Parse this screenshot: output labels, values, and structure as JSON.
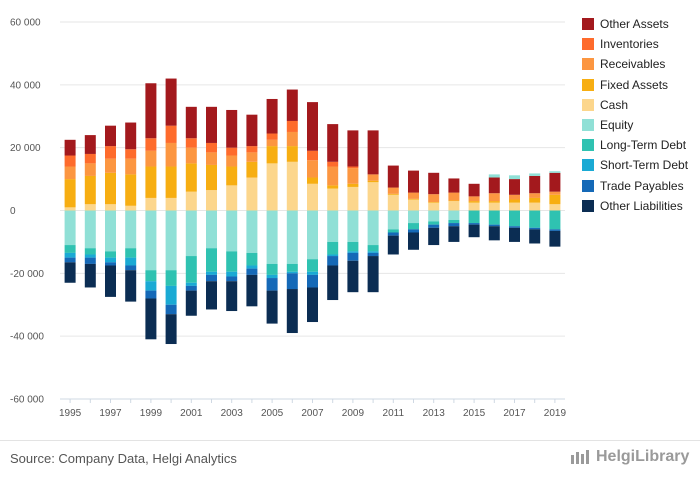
{
  "chart_data": {
    "type": "bar",
    "stacked": true,
    "categories": [
      "1995",
      "1996",
      "1997",
      "1998",
      "1999",
      "2000",
      "2001",
      "2002",
      "2003",
      "2004",
      "2005",
      "2006",
      "2007",
      "2008",
      "2009",
      "2010",
      "2011",
      "2012",
      "2013",
      "2014",
      "2015",
      "2016",
      "2017",
      "2018",
      "2019"
    ],
    "x_tick_labels": [
      "1995",
      "1997",
      "1999",
      "2001",
      "2003",
      "2005",
      "2007",
      "2009",
      "2011",
      "2013",
      "2015",
      "2017",
      "2019"
    ],
    "y_ticks": [
      60000,
      40000,
      20000,
      0,
      -20000,
      -40000,
      -60000
    ],
    "y_tick_labels": [
      "60 000",
      "40 000",
      "20 000",
      "0",
      "-20 000",
      "-40 000",
      "-60 000"
    ],
    "ylim": [
      -60000,
      60000
    ],
    "positive_series": [
      {
        "name": "Cash",
        "color": "#fcd68c",
        "values": [
          1000,
          2000,
          2000,
          1500,
          4000,
          4000,
          6000,
          6500,
          8000,
          10500,
          15000,
          15500,
          8500,
          7000,
          7500,
          9000,
          5000,
          3500,
          2500,
          3000,
          2500,
          2500,
          2500,
          2500,
          2000
        ]
      },
      {
        "name": "Fixed Assets",
        "color": "#f7ae12",
        "values": [
          9000,
          9000,
          10000,
          10000,
          10000,
          10000,
          9000,
          8000,
          6000,
          5000,
          5500,
          5000,
          2000,
          1000,
          1000,
          500,
          300,
          200,
          200,
          200,
          500,
          500,
          1000,
          1500,
          3000
        ]
      },
      {
        "name": "Receivables",
        "color": "#fc9641",
        "values": [
          4000,
          4000,
          4500,
          5000,
          5000,
          7500,
          5000,
          4000,
          3500,
          3000,
          2000,
          4500,
          5500,
          6000,
          5000,
          2000,
          2000,
          2000,
          2500,
          2500,
          1500,
          2500,
          1500,
          1500,
          1000
        ]
      },
      {
        "name": "Inventories",
        "color": "#fe6b2c",
        "values": [
          3500,
          3000,
          4000,
          3000,
          4000,
          5500,
          3000,
          3000,
          2500,
          2000,
          2000,
          3500,
          3000,
          1500,
          500,
          0,
          0,
          0,
          0,
          0,
          0,
          0,
          0,
          0,
          0
        ]
      },
      {
        "name": "Other Assets",
        "color": "#a3191d",
        "values": [
          5000,
          6000,
          6500,
          8500,
          17500,
          15000,
          10000,
          11500,
          12000,
          10000,
          11000,
          10000,
          15500,
          12000,
          11500,
          14000,
          7000,
          7000,
          6800,
          4500,
          4000,
          5000,
          5000,
          5500,
          6000
        ]
      },
      {
        "name": "Equity",
        "color": "#90e0d6",
        "values": [
          0,
          0,
          0,
          0,
          0,
          0,
          0,
          0,
          0,
          0,
          0,
          0,
          0,
          0,
          0,
          0,
          0,
          0,
          0,
          0,
          0,
          1000,
          1200,
          800,
          500
        ]
      }
    ],
    "negative_series": [
      {
        "name": "Equity",
        "color": "#90e0d6",
        "values": [
          11000,
          12000,
          13000,
          12000,
          19000,
          19000,
          14500,
          12000,
          13000,
          13500,
          17000,
          17000,
          15500,
          10000,
          10000,
          11000,
          6000,
          4000,
          3500,
          3000,
          0,
          0,
          0,
          0,
          0
        ]
      },
      {
        "name": "Long-Term Debt",
        "color": "#2fc2b1",
        "values": [
          2500,
          2000,
          2000,
          3000,
          3500,
          5000,
          8500,
          7500,
          6500,
          4000,
          3500,
          2500,
          4000,
          4000,
          3000,
          2000,
          1000,
          2000,
          1000,
          1000,
          4000,
          4500,
          5000,
          5500,
          6000
        ]
      },
      {
        "name": "Short-Term Debt",
        "color": "#1aaad4",
        "values": [
          1500,
          1000,
          1500,
          2500,
          3000,
          6000,
          1000,
          1000,
          1500,
          1000,
          1000,
          500,
          1000,
          500,
          500,
          500,
          0,
          0,
          0,
          0,
          0,
          0,
          0,
          0,
          0
        ]
      },
      {
        "name": "Trade Payables",
        "color": "#1569b7",
        "values": [
          1500,
          2000,
          1000,
          1500,
          2500,
          3000,
          1500,
          2000,
          1500,
          2000,
          4000,
          5000,
          4000,
          3000,
          2500,
          1000,
          1000,
          1000,
          1000,
          1000,
          500,
          500,
          500,
          500,
          500
        ]
      },
      {
        "name": "Other Liabilities",
        "color": "#0b2d53",
        "values": [
          6500,
          7500,
          10000,
          10000,
          13000,
          9500,
          8000,
          9000,
          9500,
          10000,
          10500,
          14000,
          11000,
          11000,
          10000,
          11500,
          6000,
          5500,
          5500,
          5000,
          4000,
          4500,
          4500,
          4500,
          5000
        ]
      }
    ],
    "legend": [
      "Other Assets",
      "Inventories",
      "Receivables",
      "Fixed Assets",
      "Cash",
      "Equity",
      "Long-Term Debt",
      "Short-Term Debt",
      "Trade Payables",
      "Other Liabilities"
    ],
    "legend_colors": [
      "#a3191d",
      "#fe6b2c",
      "#fc9641",
      "#f7ae12",
      "#fcd68c",
      "#90e0d6",
      "#2fc2b1",
      "#1aaad4",
      "#1569b7",
      "#0b2d53"
    ],
    "legend_position": "right",
    "grid": true
  },
  "footer": {
    "source": "Source: Company Data, Helgi Analytics",
    "logo_text": "HelgiLibrary"
  }
}
